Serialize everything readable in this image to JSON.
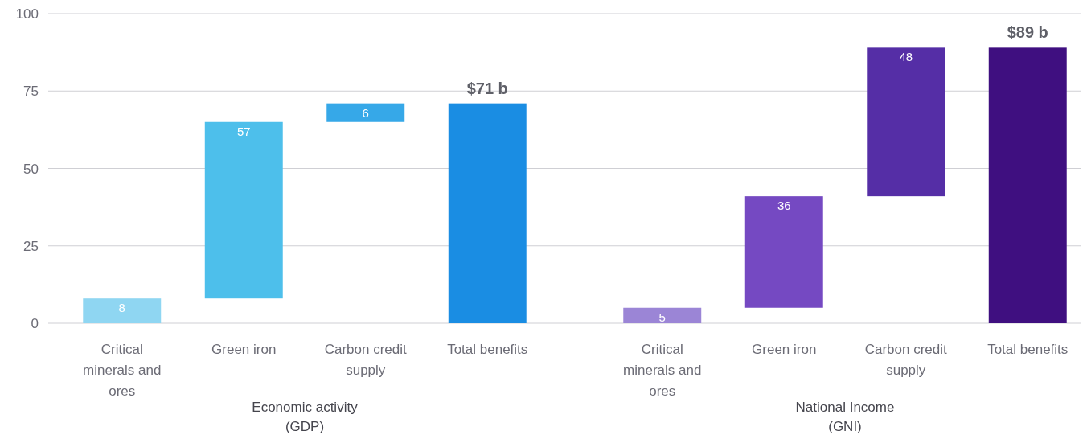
{
  "chart_data": [
    {
      "type": "bar",
      "categories": [
        "Critical minerals and ores",
        "Green iron",
        "Carbon credit supply",
        "Total benefits"
      ],
      "values": [
        8,
        57,
        6,
        71
      ],
      "base": [
        0,
        8,
        65,
        0
      ],
      "colors": [
        "#8fd6f2",
        "#4dbfeb",
        "#36a8e8",
        "#1a8de3"
      ],
      "value_labels": [
        "8",
        "57",
        "6",
        "$71 b"
      ],
      "xlabel": "Economic activity (GDP)",
      "ylim": [
        0,
        100
      ],
      "yticks": [
        0,
        25,
        50,
        75,
        100
      ],
      "grid": "y",
      "tick_labels": "xy"
    },
    {
      "type": "bar",
      "categories": [
        "Critical minerals and ores",
        "Green iron",
        "Carbon credit supply",
        "Total benefits"
      ],
      "values": [
        5,
        36,
        48,
        89
      ],
      "base": [
        0,
        5,
        41,
        0
      ],
      "colors": [
        "#9b85d6",
        "#7549c2",
        "#552ea6",
        "#3f0f80"
      ],
      "value_labels": [
        "5",
        "36",
        "48",
        "$89 b"
      ],
      "xlabel": "National Income (GNI)",
      "ylim": [
        0,
        100
      ],
      "yticks": [
        0,
        25,
        50,
        75,
        100
      ],
      "grid": "y",
      "tick_labels": "x"
    }
  ]
}
